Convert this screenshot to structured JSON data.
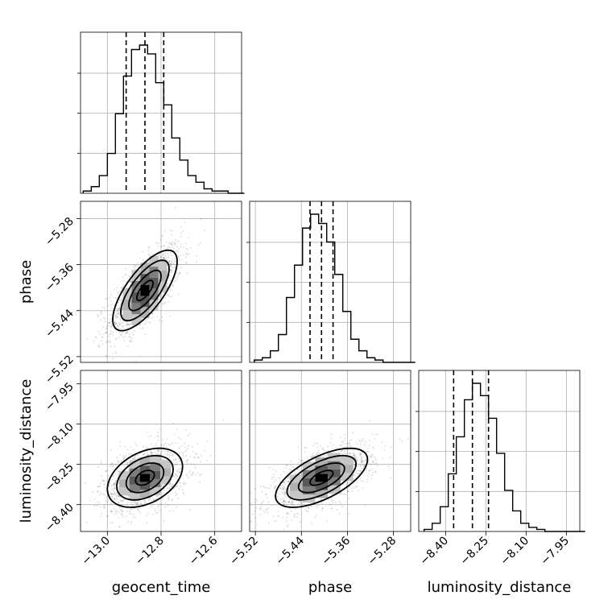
{
  "chart_data": {
    "type": "corner",
    "grid": true,
    "parameters": [
      "geocent_time",
      "phase",
      "luminosity_distance"
    ],
    "labels": {
      "geocent_time": "geocent_time",
      "phase": "phase",
      "luminosity_distance": "luminosity_distance"
    },
    "ranges": {
      "geocent_time": [
        -13.1,
        -12.5
      ],
      "phase": [
        -5.53,
        -5.25
      ],
      "luminosity_distance": [
        -8.5,
        -7.9
      ]
    },
    "ticks": {
      "geocent_time": [
        "-13.0",
        "-12.8",
        "-12.6"
      ],
      "phase": [
        "-5.52",
        "-5.44",
        "-5.36",
        "-5.28"
      ],
      "luminosity_distance": [
        "-8.40",
        "-8.25",
        "-8.10",
        "-7.95"
      ]
    },
    "quantiles": {
      "geocent_time": [
        -12.93,
        -12.86,
        -12.79
      ],
      "phase": [
        -5.425,
        -5.405,
        -5.385
      ],
      "luminosity_distance": [
        -8.37,
        -8.3,
        -8.24
      ]
    },
    "histograms": {
      "geocent_time": {
        "bin_edges": [
          -13.09,
          -13.06,
          -13.03,
          -13.0,
          -12.97,
          -12.94,
          -12.91,
          -12.88,
          -12.85,
          -12.82,
          -12.79,
          -12.76,
          -12.73,
          -12.7,
          -12.67,
          -12.64,
          -12.61,
          -12.58,
          -12.55,
          -12.52,
          -12.49
        ],
        "counts": [
          1,
          3,
          8,
          18,
          36,
          53,
          65,
          67,
          63,
          50,
          40,
          25,
          15,
          8,
          5,
          2,
          1,
          1,
          0,
          0
        ]
      },
      "phase": {
        "bin_edges": [
          -5.522,
          -5.508,
          -5.494,
          -5.48,
          -5.466,
          -5.452,
          -5.438,
          -5.424,
          -5.41,
          -5.396,
          -5.382,
          -5.368,
          -5.354,
          -5.34,
          -5.326,
          -5.312,
          -5.298,
          -5.284,
          -5.27,
          -5.256,
          -5.242
        ],
        "counts": [
          1,
          2,
          5,
          12,
          28,
          42,
          58,
          64,
          60,
          52,
          38,
          22,
          10,
          5,
          2,
          1,
          0,
          0,
          0,
          0
        ]
      },
      "luminosity_distance": {
        "bin_edges": [
          -8.48,
          -8.45,
          -8.42,
          -8.39,
          -8.36,
          -8.33,
          -8.3,
          -8.27,
          -8.24,
          -8.21,
          -8.18,
          -8.15,
          -8.12,
          -8.09,
          -8.06,
          -8.03,
          -8.0,
          -7.97,
          -7.94,
          -7.91,
          -7.88
        ],
        "counts": [
          1,
          4,
          12,
          28,
          46,
          64,
          72,
          66,
          55,
          38,
          20,
          10,
          4,
          2,
          1,
          0,
          0,
          0,
          0,
          0
        ]
      }
    },
    "pairs": [
      {
        "x": "geocent_time",
        "y": "phase",
        "mean": [
          -12.86,
          -5.405
        ],
        "sigma": [
          0.06,
          0.035
        ],
        "rho": 0.72,
        "contour_levels_sigma": [
          0.5,
          1.0,
          1.5,
          2.0
        ]
      },
      {
        "x": "geocent_time",
        "y": "luminosity_distance",
        "mean": [
          -12.86,
          -8.3
        ],
        "sigma": [
          0.07,
          0.055
        ],
        "rho": 0.38,
        "contour_levels_sigma": [
          0.5,
          1.0,
          1.5,
          2.0
        ]
      },
      {
        "x": "phase",
        "y": "luminosity_distance",
        "mean": [
          -5.405,
          -8.3
        ],
        "sigma": [
          0.04,
          0.055
        ],
        "rho": 0.62,
        "contour_levels_sigma": [
          0.5,
          1.0,
          1.5,
          2.0
        ]
      }
    ]
  }
}
